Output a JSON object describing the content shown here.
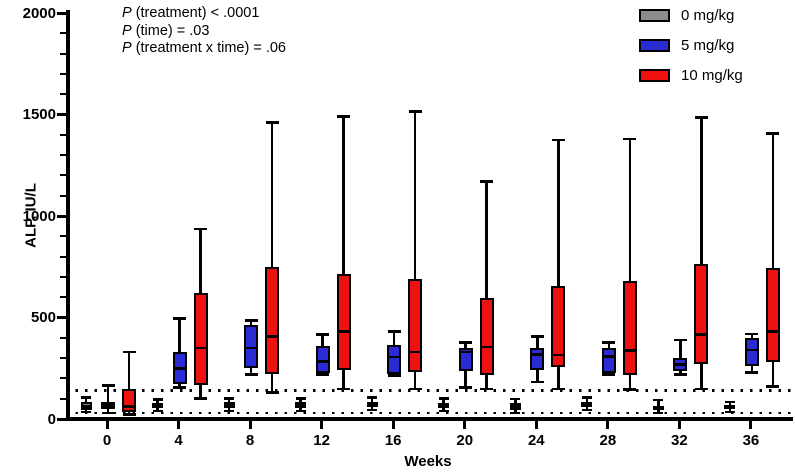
{
  "chart_data": {
    "type": "grouped_boxplot",
    "xlabel": "Weeks",
    "ylabel": "ALP, IU/L",
    "ylim": [
      0,
      2000
    ],
    "y_major_ticks": [
      0,
      500,
      1000,
      1500,
      2000
    ],
    "y_minor_step": 100,
    "x_categories": [
      0,
      4,
      8,
      12,
      16,
      20,
      24,
      28,
      32,
      36
    ],
    "reference_lines": [
      140,
      30
    ],
    "legend_position": "top-right",
    "grid": false,
    "groups": [
      {
        "name": "0 mg/kg",
        "color": "#8C8C8C",
        "boxes_min_q1_med_q3_max": [
          [
            35,
            45,
            62,
            84,
            105
          ],
          [
            40,
            55,
            68,
            80,
            95
          ],
          [
            40,
            55,
            68,
            82,
            100
          ],
          [
            40,
            55,
            68,
            82,
            100
          ],
          [
            45,
            60,
            72,
            85,
            105
          ],
          [
            40,
            55,
            68,
            80,
            100
          ],
          [
            30,
            45,
            60,
            78,
            99
          ],
          [
            45,
            58,
            70,
            85,
            105
          ],
          [
            30,
            42,
            52,
            64,
            94
          ],
          [
            34,
            48,
            58,
            68,
            84
          ]
        ]
      },
      {
        "name": "5 mg/kg",
        "color": "#2B2BD4",
        "boxes_min_q1_med_q3_max": [
          [
            30,
            48,
            68,
            85,
            165
          ],
          [
            155,
            170,
            250,
            330,
            495
          ],
          [
            220,
            250,
            350,
            465,
            485
          ],
          [
            218,
            228,
            282,
            360,
            415
          ],
          [
            215,
            222,
            305,
            365,
            430
          ],
          [
            155,
            235,
            330,
            352,
            378
          ],
          [
            183,
            243,
            317,
            352,
            406
          ],
          [
            218,
            228,
            307,
            352,
            378
          ],
          [
            218,
            238,
            267,
            302,
            390
          ],
          [
            230,
            260,
            340,
            400,
            418
          ]
        ]
      },
      {
        "name": "10 mg/kg",
        "color": "#EE1111",
        "boxes_min_q1_med_q3_max": [
          [
            22,
            35,
            60,
            150,
            330
          ],
          [
            100,
            165,
            350,
            620,
            935
          ],
          [
            130,
            220,
            405,
            750,
            1460
          ],
          [
            148,
            240,
            430,
            713,
            1490
          ],
          [
            148,
            233,
            330,
            688,
            1515
          ],
          [
            148,
            218,
            355,
            595,
            1170
          ],
          [
            148,
            257,
            315,
            655,
            1375
          ],
          [
            145,
            218,
            337,
            678,
            1380
          ],
          [
            148,
            270,
            415,
            765,
            1485
          ],
          [
            160,
            280,
            430,
            745,
            1405
          ]
        ]
      }
    ],
    "annotations": [
      {
        "prefix": "P",
        "text": " (treatment) < .0001"
      },
      {
        "prefix": "P",
        "text": " (time) = .03"
      },
      {
        "prefix": "P",
        "text": " (treatment x time) = .06"
      }
    ]
  },
  "axes": {
    "y_title": "ALP, IU/L",
    "x_title": "Weeks",
    "y_tick_labels": [
      "0",
      "500",
      "1000",
      "1500",
      "2000"
    ],
    "x_tick_labels": [
      "0",
      "4",
      "8",
      "12",
      "16",
      "20",
      "24",
      "28",
      "32",
      "36"
    ]
  },
  "legend": {
    "items": [
      {
        "label": "0 mg/kg",
        "color": "#8C8C8C"
      },
      {
        "label": "5 mg/kg",
        "color": "#2B2BD4"
      },
      {
        "label": "10 mg/kg",
        "color": "#EE1111"
      }
    ]
  }
}
